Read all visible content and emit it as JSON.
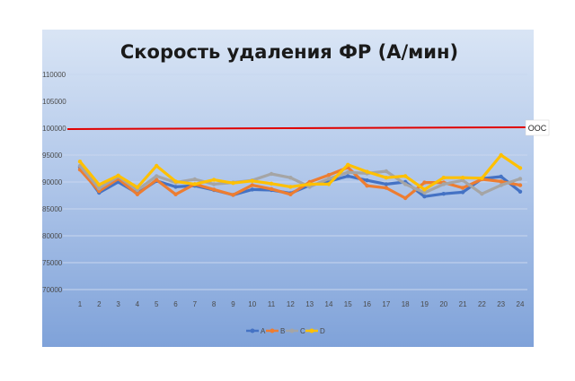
{
  "chart_data": {
    "type": "line",
    "title": "Скорость удаления ФР (А/мин)",
    "x": [
      "1",
      "2",
      "3",
      "4",
      "5",
      "6",
      "7",
      "8",
      "9",
      "10",
      "11",
      "12",
      "13",
      "14",
      "15",
      "16",
      "17",
      "18",
      "19",
      "20",
      "21",
      "22",
      "23",
      "24"
    ],
    "ylim": [
      70000,
      110000
    ],
    "yticks": [
      "70000",
      "75000",
      "80000",
      "85000",
      "90000",
      "95000",
      "100000",
      "105000",
      "110000"
    ],
    "series": [
      {
        "name": "A",
        "color": "#4472C4",
        "values": [
          92800,
          88000,
          90000,
          87900,
          90200,
          89100,
          89300,
          88500,
          87600,
          88600,
          88500,
          87900,
          89400,
          90100,
          91100,
          90300,
          89600,
          90000,
          87300,
          87800,
          88100,
          90600,
          91000,
          88200
        ]
      },
      {
        "name": "B",
        "color": "#ED7D31",
        "values": [
          92300,
          88300,
          90600,
          87700,
          90400,
          87700,
          89600,
          88600,
          87600,
          89400,
          88700,
          87700,
          90000,
          91300,
          92700,
          89300,
          88900,
          87000,
          89900,
          89900,
          88900,
          90500,
          90100,
          89400
        ]
      },
      {
        "name": "C",
        "color": "#A5A5A5",
        "values": [
          93000,
          88800,
          91000,
          88500,
          91100,
          89900,
          90500,
          89600,
          89900,
          90300,
          91500,
          90800,
          89100,
          90600,
          91800,
          91600,
          92000,
          89600,
          88000,
          89600,
          90300,
          87800,
          89400,
          90600
        ]
      },
      {
        "name": "D",
        "color": "#FFC000",
        "values": [
          93800,
          89500,
          91200,
          89000,
          93000,
          90100,
          89600,
          90400,
          89800,
          90200,
          89700,
          89100,
          89600,
          89600,
          93200,
          91900,
          90800,
          91100,
          88600,
          90800,
          90800,
          90700,
          95000,
          92600
        ]
      }
    ],
    "reference_line": {
      "label": "OOC",
      "value": 100000,
      "color": "#E00000"
    },
    "grid": true,
    "legend_position": "bottom"
  }
}
